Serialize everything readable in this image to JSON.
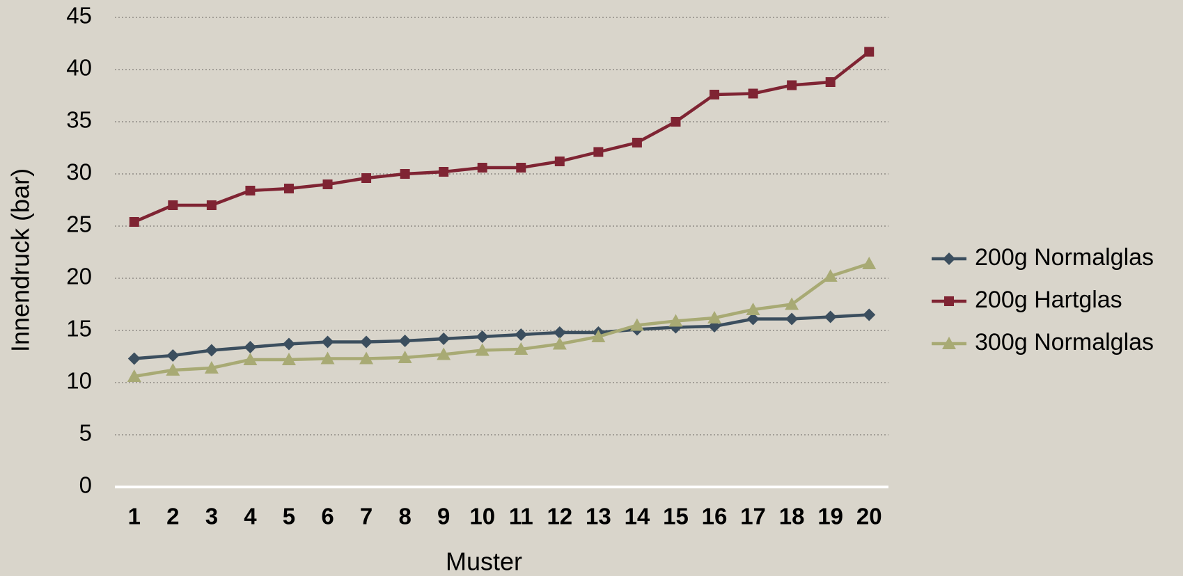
{
  "chart_data": {
    "type": "line",
    "x_label": "Muster",
    "y_label": "Innendruck (bar)",
    "categories": [
      "1",
      "2",
      "3",
      "4",
      "5",
      "6",
      "7",
      "8",
      "9",
      "10",
      "11",
      "12",
      "13",
      "14",
      "15",
      "16",
      "17",
      "18",
      "19",
      "20"
    ],
    "series": [
      {
        "name": "200g Normalglas",
        "color": "#3b4e5e",
        "marker": "diamond",
        "values": [
          12.3,
          12.6,
          13.1,
          13.4,
          13.7,
          13.9,
          13.9,
          14.0,
          14.2,
          14.4,
          14.6,
          14.8,
          14.8,
          15.1,
          15.3,
          15.4,
          16.1,
          16.1,
          16.3,
          16.5
        ]
      },
      {
        "name": "200g Hartglas",
        "color": "#7f2433",
        "marker": "square",
        "values": [
          25.4,
          27.0,
          27.0,
          28.4,
          28.6,
          29.0,
          29.6,
          30.0,
          30.2,
          30.6,
          30.6,
          31.2,
          32.1,
          33.0,
          35.0,
          37.6,
          37.7,
          38.5,
          38.8,
          41.7
        ]
      },
      {
        "name": "300g Normalglas",
        "color": "#a8aa74",
        "marker": "triangle",
        "values": [
          10.6,
          11.2,
          11.4,
          12.2,
          12.2,
          12.3,
          12.3,
          12.4,
          12.7,
          13.1,
          13.2,
          13.7,
          14.4,
          15.5,
          15.9,
          16.2,
          17.0,
          17.5,
          20.2,
          21.4
        ]
      }
    ],
    "ylim": [
      0,
      45
    ],
    "yticks": [
      0,
      5,
      10,
      15,
      20,
      25,
      30,
      35,
      40,
      45
    ],
    "grid": true,
    "legend": "right"
  }
}
